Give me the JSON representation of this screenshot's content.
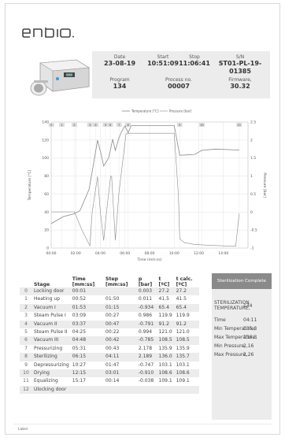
{
  "brand": "enbio",
  "header": {
    "date_label": "Date",
    "date": "23-08-19",
    "start_label": "Start",
    "start": "10:51:09",
    "stop_label": "Stop",
    "stop": "11:06:41",
    "sn_label": "S/N",
    "sn": "ST01-PL-19-01385",
    "program_label": "Program",
    "program": "134",
    "process_label": "Process no.",
    "process": "00007",
    "firmware_label": "Firmware,",
    "firmware": "30.32"
  },
  "chart_data": {
    "type": "line",
    "xlabel": "Time (mm:ss)",
    "ylabel_left": "Temperature [°C]",
    "ylabel_right": "Pressure [bar]",
    "legend": [
      "Temperature [°C]",
      "Pressure [bar]"
    ],
    "legend_position": "top-center",
    "xlim": [
      0,
      960
    ],
    "ylim_left": [
      0,
      140
    ],
    "ylim_right": [
      -1,
      2.5
    ],
    "x_ticks": [
      "00:00",
      "02:00",
      "04:00",
      "06:00",
      "08:00",
      "10:00",
      "12:00",
      "14:00"
    ],
    "y_ticks_left": [
      "0",
      "20",
      "40",
      "60",
      "80",
      "100",
      "120",
      "140"
    ],
    "y_ticks_right": [
      "-1",
      "-0.5",
      "0",
      "0.5",
      "1",
      "1.5",
      "2",
      "2.5"
    ],
    "stage_markers": [
      "0",
      "1",
      "2",
      "3",
      "4",
      "5",
      "6",
      "7",
      "8",
      "9",
      "10",
      "11"
    ],
    "series": [
      {
        "name": "Temperature [°C]",
        "color": "#8a8a8a",
        "x": [
          0,
          60,
          110,
          140,
          185,
          200,
          226,
          245,
          256,
          280,
          290,
          300,
          313,
          330,
          345,
          360,
          375,
          390,
          480,
          600,
          627,
          700,
          735,
          800,
          900,
          917
        ],
        "y": [
          27.2,
          35,
          38,
          41.5,
          65.4,
          85,
          119.9,
          103,
          91.2,
          100,
          110,
          121.0,
          108.5,
          122,
          130,
          135.9,
          128,
          136,
          136,
          136,
          103.1,
          104,
          108.6,
          110,
          109,
          109.1
        ]
      },
      {
        "name": "Pressure [bar]",
        "color": "#8a8a8a",
        "x": [
          0,
          60,
          110,
          113,
          150,
          189,
          200,
          226,
          240,
          256,
          270,
          290,
          295,
          313,
          330,
          365,
          375,
          380,
          480,
          600,
          620,
          627,
          650,
          700,
          735,
          800,
          900,
          917
        ],
        "y": [
          0.003,
          0.003,
          0.006,
          0.011,
          -0.5,
          -0.934,
          0,
          0.986,
          0,
          -0.791,
          0,
          0.994,
          0.994,
          -0.785,
          0.5,
          2.178,
          2.17,
          2.189,
          2.19,
          2.19,
          0.5,
          -0.747,
          -0.85,
          -0.9,
          -0.91,
          -0.93,
          -0.95,
          -0.038
        ]
      }
    ]
  },
  "stages": {
    "headers": [
      "Stage",
      "Time [mm:ss]",
      "Step [mm:ss]",
      "p [bar]",
      "t [ºC]",
      "t calc. [ºC]"
    ],
    "rows": [
      [
        "0",
        "Locking door",
        "00:01",
        "",
        "0.003",
        "27.2",
        "27.2"
      ],
      [
        "1",
        "Heating up",
        "00:52",
        "01:50",
        "0.011",
        "41.5",
        "41.5"
      ],
      [
        "2",
        "Vacuum I",
        "01:53",
        "01:15",
        "-0.934",
        "65.4",
        "65.4"
      ],
      [
        "3",
        "Steam Pulse I",
        "03:09",
        "00:27",
        "0.986",
        "119.9",
        "119.9"
      ],
      [
        "4",
        "Vacuum II",
        "03:37",
        "00:47",
        "-0.791",
        "91.2",
        "91.2"
      ],
      [
        "5",
        "Steam Pulse II",
        "04:25",
        "00:22",
        "0.994",
        "121.0",
        "121.0"
      ],
      [
        "6",
        "Vacuum III",
        "04:48",
        "00:42",
        "-0.785",
        "108.5",
        "108.5"
      ],
      [
        "7",
        "Pressurizing",
        "05:31",
        "00:43",
        "2.178",
        "135.9",
        "135.9"
      ],
      [
        "8",
        "Sterilizing",
        "06:15",
        "04:11",
        "2.189",
        "136.0",
        "135.7"
      ],
      [
        "9",
        "Depressurizing",
        "10:27",
        "01:47",
        "-0.747",
        "103.1",
        "103.1"
      ],
      [
        "10",
        "Drying",
        "12:15",
        "03:01",
        "-0.910",
        "108.6",
        "108.6"
      ],
      [
        "11",
        "Equalizing",
        "15:17",
        "00:14",
        "-0.038",
        "109.1",
        "109.1"
      ],
      [
        "12",
        "Ulocking door",
        "",
        "",
        "",
        "",
        ""
      ]
    ]
  },
  "summary": {
    "title": "Sterilization Complete",
    "sterilization_temp_label": "STERILIZATION TEMPERATURE,",
    "sterilization_temp": "134",
    "time_label": "Time",
    "time": "04:11",
    "min_temp_label": "Min Temperature,",
    "min_temp": "135,8",
    "max_temp_label": "Max Temperature,",
    "max_temp": "136,3",
    "min_pressure_label": "Min Pressure,",
    "min_pressure": "2,16",
    "max_pressure_label": "Max Pressure,",
    "max_pressure": "2,26"
  },
  "footer": {
    "label": "Label"
  }
}
